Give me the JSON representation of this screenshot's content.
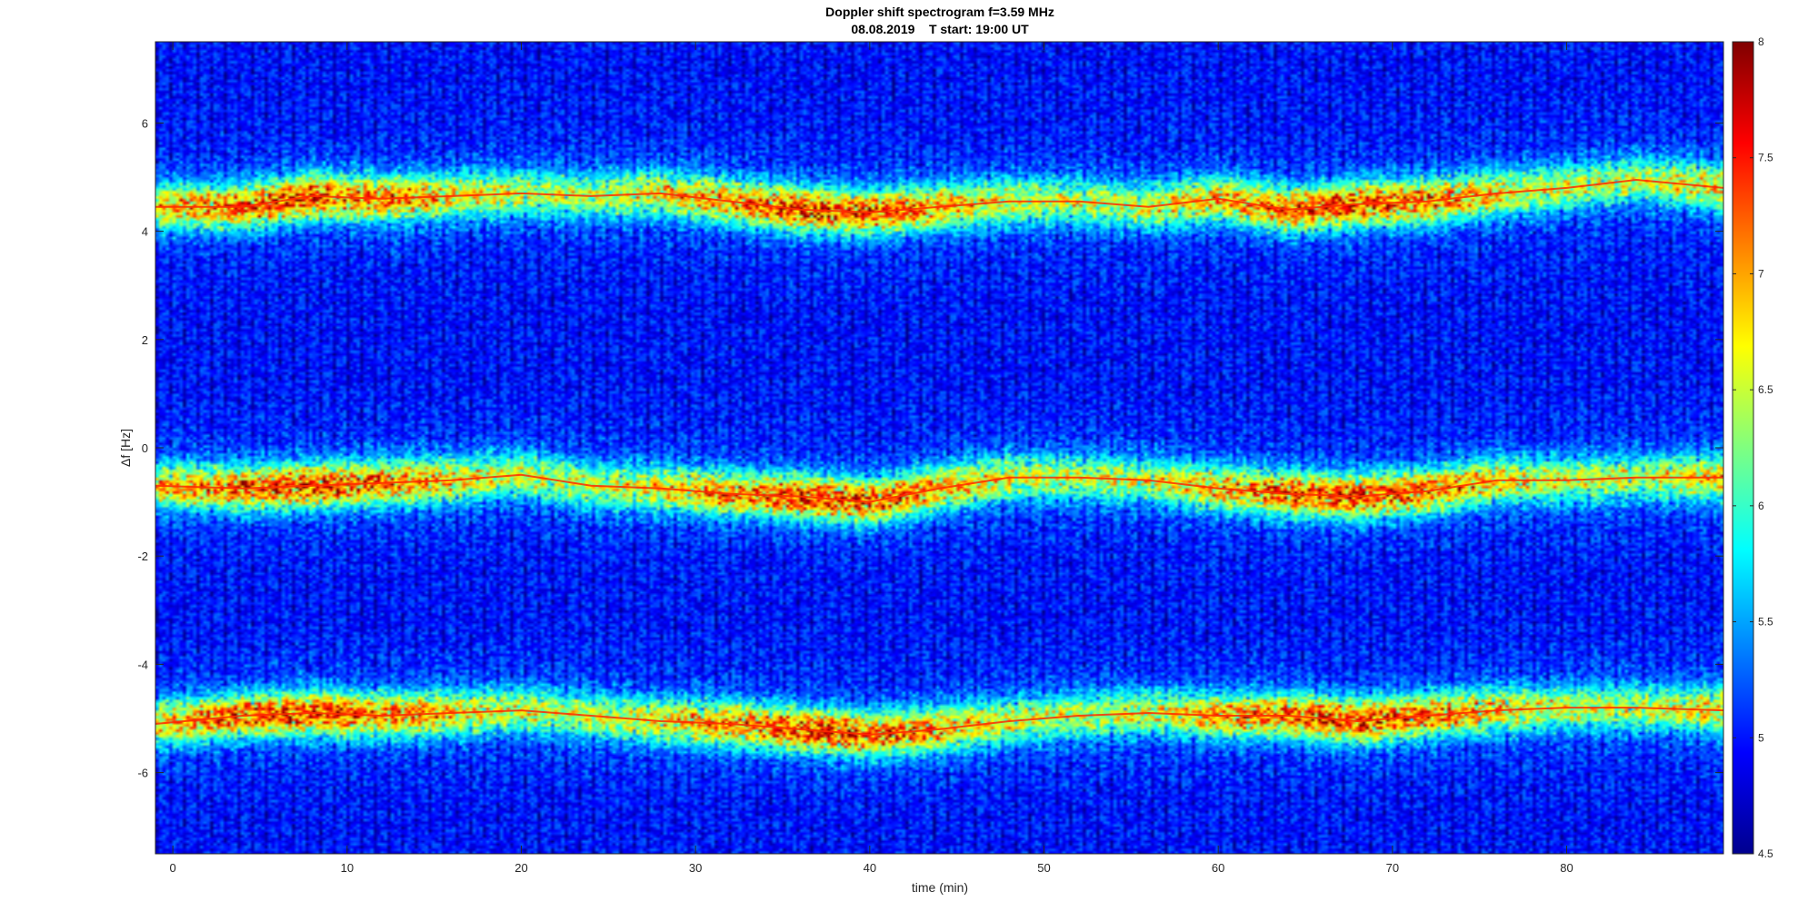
{
  "chart_data": {
    "type": "heatmap",
    "title": "Doppler shift spectrogram f=3.59 MHz",
    "subtitle": "08.08.2019    T start: 19:00 UT",
    "xlabel": "time (min)",
    "ylabel": "Δf [Hz]",
    "xlim": [
      -1,
      89
    ],
    "ylim": [
      -7.5,
      7.5
    ],
    "xticks": [
      0,
      10,
      20,
      30,
      40,
      50,
      60,
      70,
      80
    ],
    "yticks": [
      -6,
      -4,
      -2,
      0,
      2,
      4,
      6
    ],
    "colormap": "jet",
    "clim": [
      4.5,
      8
    ],
    "colorbar_ticks": [
      4.5,
      5,
      5.5,
      6,
      6.5,
      7,
      7.5,
      8
    ],
    "colorbar_position": "right",
    "grid": false,
    "series": [
      {
        "x": [
          -1,
          4,
          8,
          12,
          16,
          20,
          24,
          28,
          32,
          36,
          40,
          44,
          48,
          52,
          56,
          60,
          64,
          68,
          72,
          76,
          80,
          84,
          89
        ],
        "values": [
          4.45,
          4.45,
          4.65,
          4.6,
          4.65,
          4.7,
          4.65,
          4.7,
          4.55,
          4.4,
          4.35,
          4.45,
          4.55,
          4.55,
          4.45,
          4.6,
          4.4,
          4.5,
          4.55,
          4.7,
          4.8,
          4.95,
          4.8
        ]
      },
      {
        "x": [
          -1,
          4,
          8,
          12,
          16,
          20,
          24,
          28,
          32,
          36,
          40,
          44,
          48,
          52,
          56,
          60,
          64,
          68,
          72,
          76,
          80,
          84,
          89
        ],
        "values": [
          -0.7,
          -0.75,
          -0.7,
          -0.65,
          -0.6,
          -0.5,
          -0.7,
          -0.75,
          -0.85,
          -0.9,
          -1.0,
          -0.75,
          -0.55,
          -0.55,
          -0.6,
          -0.75,
          -0.85,
          -0.9,
          -0.8,
          -0.6,
          -0.6,
          -0.55,
          -0.55
        ]
      },
      {
        "x": [
          -1,
          4,
          8,
          12,
          16,
          20,
          24,
          28,
          32,
          36,
          40,
          44,
          48,
          52,
          56,
          60,
          64,
          68,
          72,
          76,
          80,
          84,
          89
        ],
        "values": [
          -5.1,
          -4.95,
          -4.9,
          -4.95,
          -4.9,
          -4.85,
          -4.95,
          -5.05,
          -5.1,
          -5.2,
          -5.3,
          -5.2,
          -5.05,
          -4.95,
          -4.9,
          -4.95,
          -4.95,
          -5.05,
          -4.95,
          -4.85,
          -4.8,
          -4.8,
          -4.85
        ]
      }
    ]
  }
}
